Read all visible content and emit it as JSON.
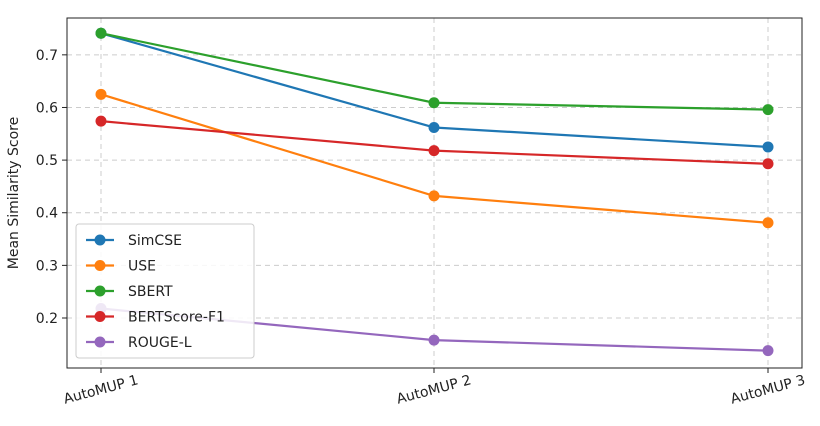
{
  "chart_data": {
    "type": "line",
    "categories": [
      "AutoMUP 1",
      "AutoMUP 2",
      "AutoMUP 3"
    ],
    "ylabel": "Mean Similarity Score",
    "xlabel": "",
    "ylim": [
      0.105,
      0.77
    ],
    "yticks": [
      "0.2",
      "0.3",
      "0.4",
      "0.5",
      "0.6",
      "0.7"
    ],
    "grid": true,
    "legend": "lower-left",
    "series": [
      {
        "name": "SimCSE",
        "color": "#1f77b4",
        "values": [
          0.741,
          0.562,
          0.525
        ]
      },
      {
        "name": "USE",
        "color": "#ff7f0e",
        "values": [
          0.625,
          0.432,
          0.381
        ]
      },
      {
        "name": "SBERT",
        "color": "#2ca02c",
        "values": [
          0.741,
          0.609,
          0.596
        ]
      },
      {
        "name": "BERTScore-F1",
        "color": "#d62728",
        "values": [
          0.574,
          0.518,
          0.493
        ]
      },
      {
        "name": "ROUGE-L",
        "color": "#9467bd",
        "values": [
          0.218,
          0.158,
          0.138
        ]
      }
    ]
  }
}
